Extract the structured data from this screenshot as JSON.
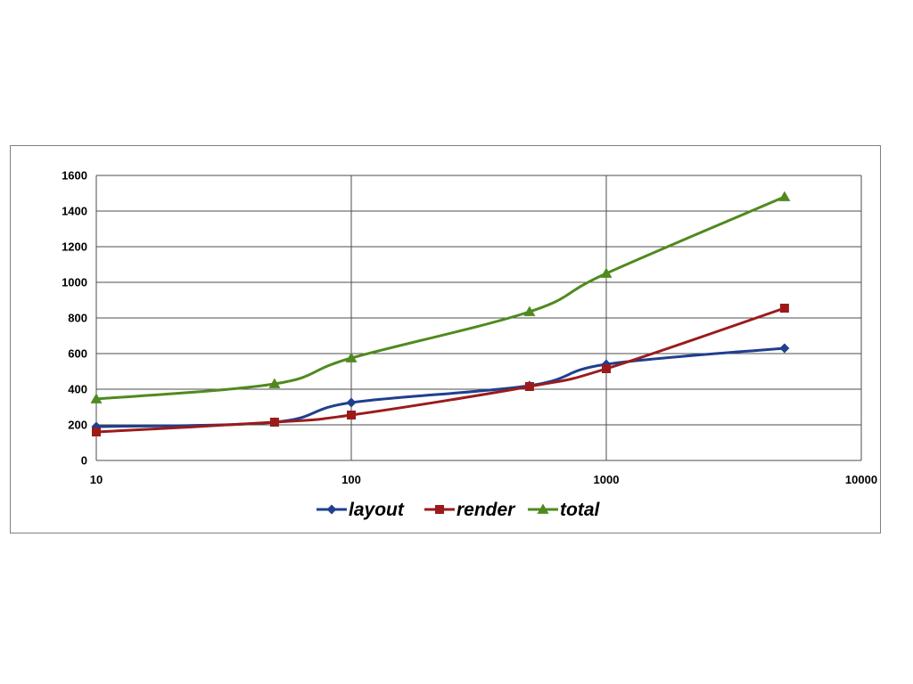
{
  "chart_data": {
    "type": "line",
    "title": "",
    "xlabel": "",
    "ylabel": "",
    "xscale": "log",
    "xlim": [
      10,
      10000
    ],
    "ylim": [
      0,
      1600
    ],
    "x_ticks": [
      "10",
      "100",
      "1000",
      "10000"
    ],
    "y_ticks": [
      "0",
      "200",
      "400",
      "600",
      "800",
      "1000",
      "1200",
      "1400",
      "1600"
    ],
    "grid": true,
    "legend_position": "bottom",
    "x": [
      10,
      50,
      100,
      500,
      1000,
      5000
    ],
    "series": [
      {
        "name": "layout",
        "values": [
          190,
          215,
          325,
          420,
          540,
          630
        ],
        "color": "#1f3f8f",
        "marker": "diamond"
      },
      {
        "name": "render",
        "values": [
          160,
          215,
          255,
          415,
          515,
          855
        ],
        "color": "#9b1b1b",
        "marker": "square"
      },
      {
        "name": "total",
        "values": [
          345,
          430,
          575,
          835,
          1050,
          1480
        ],
        "color": "#4f8a1f",
        "marker": "triangle"
      }
    ]
  }
}
